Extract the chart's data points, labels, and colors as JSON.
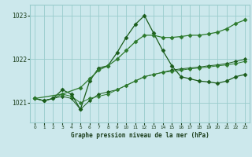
{
  "title": "Graphe pression niveau de la mer (hPa)",
  "bg_color": "#cce8ec",
  "grid_color": "#99cccc",
  "line_color_dark": "#1a5c1a",
  "line_color_mid": "#2d7a2d",
  "xlim": [
    -0.5,
    23.5
  ],
  "ylim": [
    1020.55,
    1023.25
  ],
  "yticks": [
    1021,
    1022,
    1023
  ],
  "xticks": [
    0,
    1,
    2,
    3,
    4,
    5,
    6,
    7,
    8,
    9,
    10,
    11,
    12,
    13,
    14,
    15,
    16,
    17,
    18,
    19,
    20,
    21,
    22,
    23
  ],
  "s1_x": [
    0,
    1,
    2,
    3,
    4,
    5,
    6,
    7,
    8,
    9,
    10,
    11,
    12,
    13,
    14,
    15,
    16,
    17,
    18,
    19,
    20,
    21,
    22,
    23
  ],
  "s1_y": [
    1021.1,
    1021.05,
    1021.1,
    1021.15,
    1021.1,
    1020.85,
    1021.05,
    1021.2,
    1021.25,
    1021.3,
    1021.4,
    1021.5,
    1021.6,
    1021.65,
    1021.7,
    1021.75,
    1021.78,
    1021.8,
    1021.82,
    1021.85,
    1021.87,
    1021.9,
    1021.95,
    1022.0
  ],
  "s2_x": [
    0,
    1,
    2,
    3,
    4,
    5,
    6,
    7,
    8,
    9,
    10,
    11,
    12,
    13,
    14,
    15,
    16,
    17,
    18,
    19,
    20,
    21,
    22,
    23
  ],
  "s2_y": [
    1021.1,
    1021.05,
    1021.1,
    1021.2,
    1021.15,
    1021.0,
    1021.1,
    1021.15,
    1021.2,
    1021.3,
    1021.4,
    1021.5,
    1021.6,
    1021.65,
    1021.7,
    1021.72,
    1021.75,
    1021.78,
    1021.8,
    1021.82,
    1021.85,
    1021.87,
    1021.9,
    1021.95
  ],
  "s3_x": [
    0,
    1,
    2,
    3,
    4,
    5,
    6,
    7,
    8,
    9,
    10,
    11,
    12,
    13,
    14,
    15,
    16,
    17,
    18,
    19,
    20,
    21,
    22,
    23
  ],
  "s3_y": [
    1021.1,
    1021.05,
    1021.1,
    1021.3,
    1021.2,
    1020.85,
    1021.5,
    1021.8,
    1021.85,
    1022.15,
    1022.5,
    1022.8,
    1023.0,
    1022.6,
    1022.2,
    1021.85,
    1021.6,
    1021.55,
    1021.5,
    1021.48,
    1021.45,
    1021.5,
    1021.6,
    1021.65
  ],
  "s4_x": [
    0,
    3,
    5,
    6,
    7,
    8,
    9,
    10,
    11,
    12,
    13,
    14,
    15,
    16,
    17,
    18,
    19,
    20,
    21,
    22,
    23
  ],
  "s4_y": [
    1021.1,
    1021.2,
    1021.35,
    1021.55,
    1021.75,
    1021.85,
    1022.0,
    1022.2,
    1022.4,
    1022.55,
    1022.55,
    1022.5,
    1022.5,
    1022.52,
    1022.55,
    1022.55,
    1022.58,
    1022.62,
    1022.7,
    1022.82,
    1022.9
  ]
}
